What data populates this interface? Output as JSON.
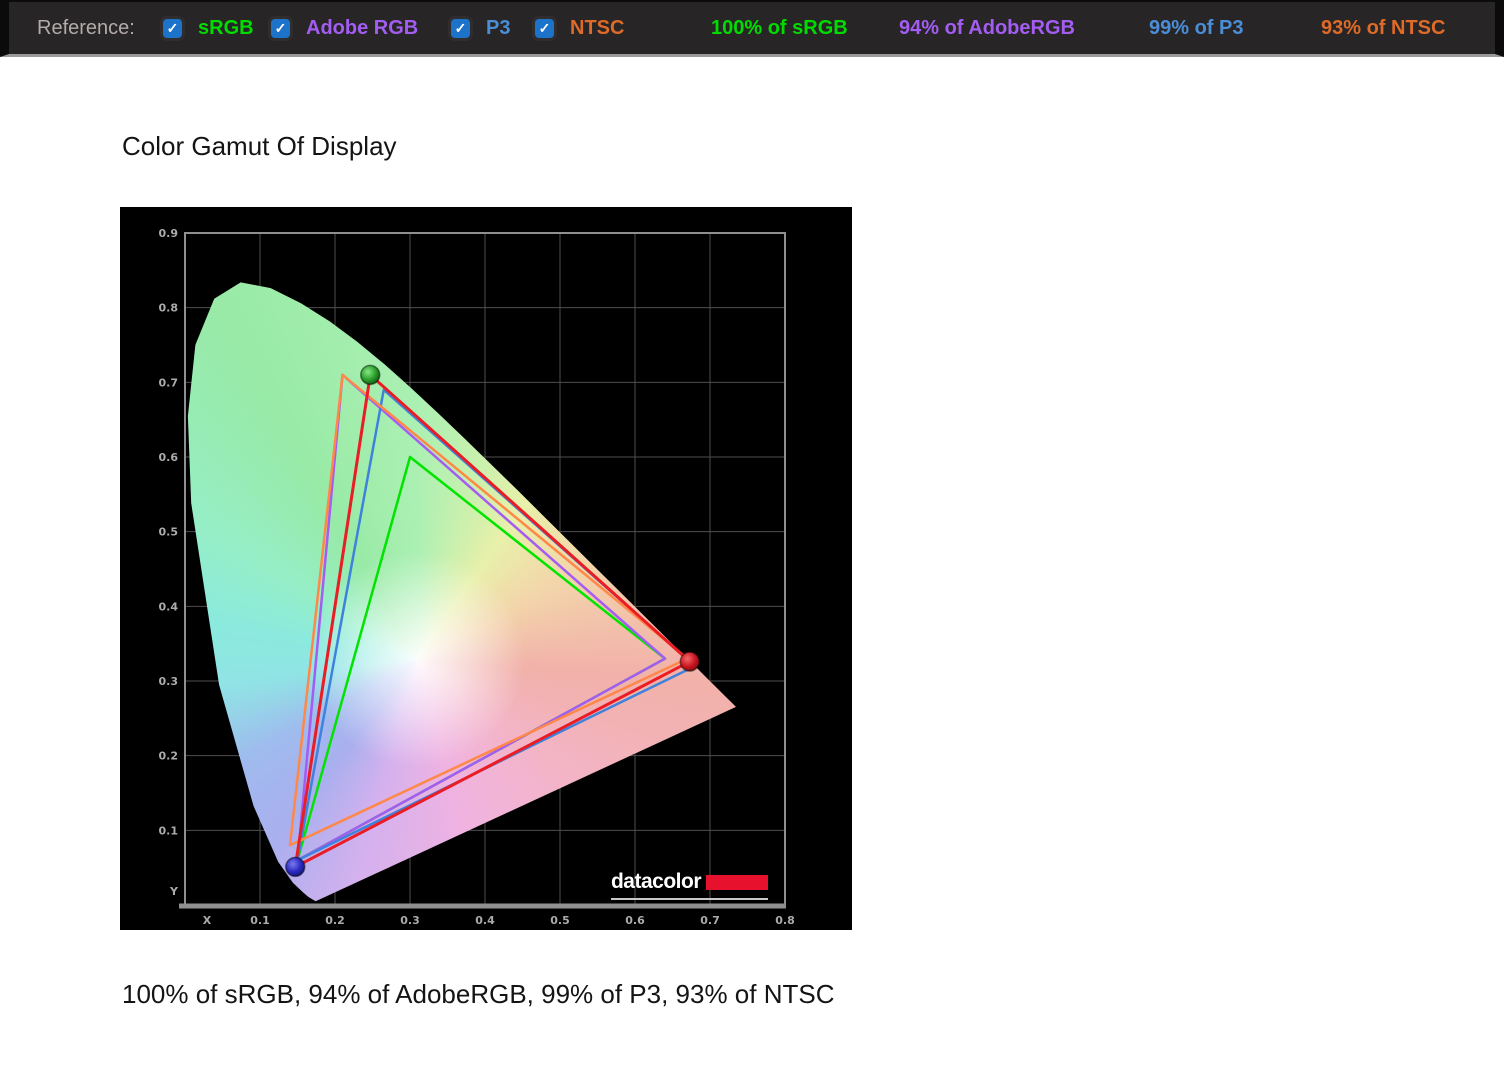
{
  "topbar": {
    "reference_label": "Reference:",
    "checkbox_color": "#1d72c9",
    "check_glyph": "✓",
    "checkboxes": [
      {
        "label": "sRGB",
        "color": "#00dc00",
        "checked": true
      },
      {
        "label": "Adobe RGB",
        "color": "#a35df2",
        "checked": true
      },
      {
        "label": "P3",
        "color": "#4b8ed8",
        "checked": true
      },
      {
        "label": "NTSC",
        "color": "#df6b28",
        "checked": true
      }
    ],
    "coverage": [
      {
        "text": "100% of sRGB",
        "color": "#00dc00"
      },
      {
        "text": "94% of AdobeRGB",
        "color": "#a35df2"
      },
      {
        "text": "99% of P3",
        "color": "#4b8ed8"
      },
      {
        "text": "93% of NTSC",
        "color": "#df6b28"
      }
    ]
  },
  "main": {
    "title": "Color Gamut Of Display",
    "summary": "100% of sRGB, 94% of AdobeRGB, 99% of P3, 93% of NTSC"
  },
  "logo": {
    "text": "datacolor",
    "bar_color": "#e8112d"
  },
  "chart_data": {
    "type": "scatter",
    "subtype": "cie-1931-chromaticity",
    "title": "Color Gamut Of Display",
    "xlabel": "X",
    "ylabel": "Y",
    "xlim": [
      0,
      0.8
    ],
    "ylim": [
      0,
      0.9
    ],
    "x_ticks": [
      "0.1",
      "0.2",
      "0.3",
      "0.4",
      "0.5",
      "0.6",
      "0.7",
      "0.8"
    ],
    "y_ticks": [
      "0.1",
      "0.2",
      "0.3",
      "0.4",
      "0.5",
      "0.6",
      "0.7",
      "0.8",
      "0.9"
    ],
    "grid": true,
    "legend_position": "none",
    "series": [
      {
        "name": "sRGB",
        "role": "reference",
        "color": "#00e400",
        "points": [
          [
            0.64,
            0.33
          ],
          [
            0.3,
            0.6
          ],
          [
            0.15,
            0.06
          ]
        ]
      },
      {
        "name": "Adobe RGB",
        "role": "reference",
        "color": "#a55cf2",
        "points": [
          [
            0.64,
            0.33
          ],
          [
            0.21,
            0.71
          ],
          [
            0.15,
            0.06
          ]
        ]
      },
      {
        "name": "P3",
        "role": "reference",
        "color": "#3f82dc",
        "points": [
          [
            0.68,
            0.32
          ],
          [
            0.265,
            0.69
          ],
          [
            0.15,
            0.06
          ]
        ]
      },
      {
        "name": "NTSC",
        "role": "reference",
        "color": "#ff8848",
        "points": [
          [
            0.67,
            0.33
          ],
          [
            0.21,
            0.71
          ],
          [
            0.14,
            0.08
          ]
        ]
      },
      {
        "name": "Display",
        "role": "measured",
        "color": "#ea1c24",
        "points": [
          [
            0.673,
            0.326
          ],
          [
            0.247,
            0.71
          ],
          [
            0.147,
            0.051
          ]
        ],
        "marker_colors": [
          "red",
          "green",
          "blue"
        ]
      }
    ],
    "coverage_results": {
      "sRGB": 100,
      "AdobeRGB": 94,
      "P3": 99,
      "NTSC": 93
    },
    "watermark": "datacolor"
  }
}
